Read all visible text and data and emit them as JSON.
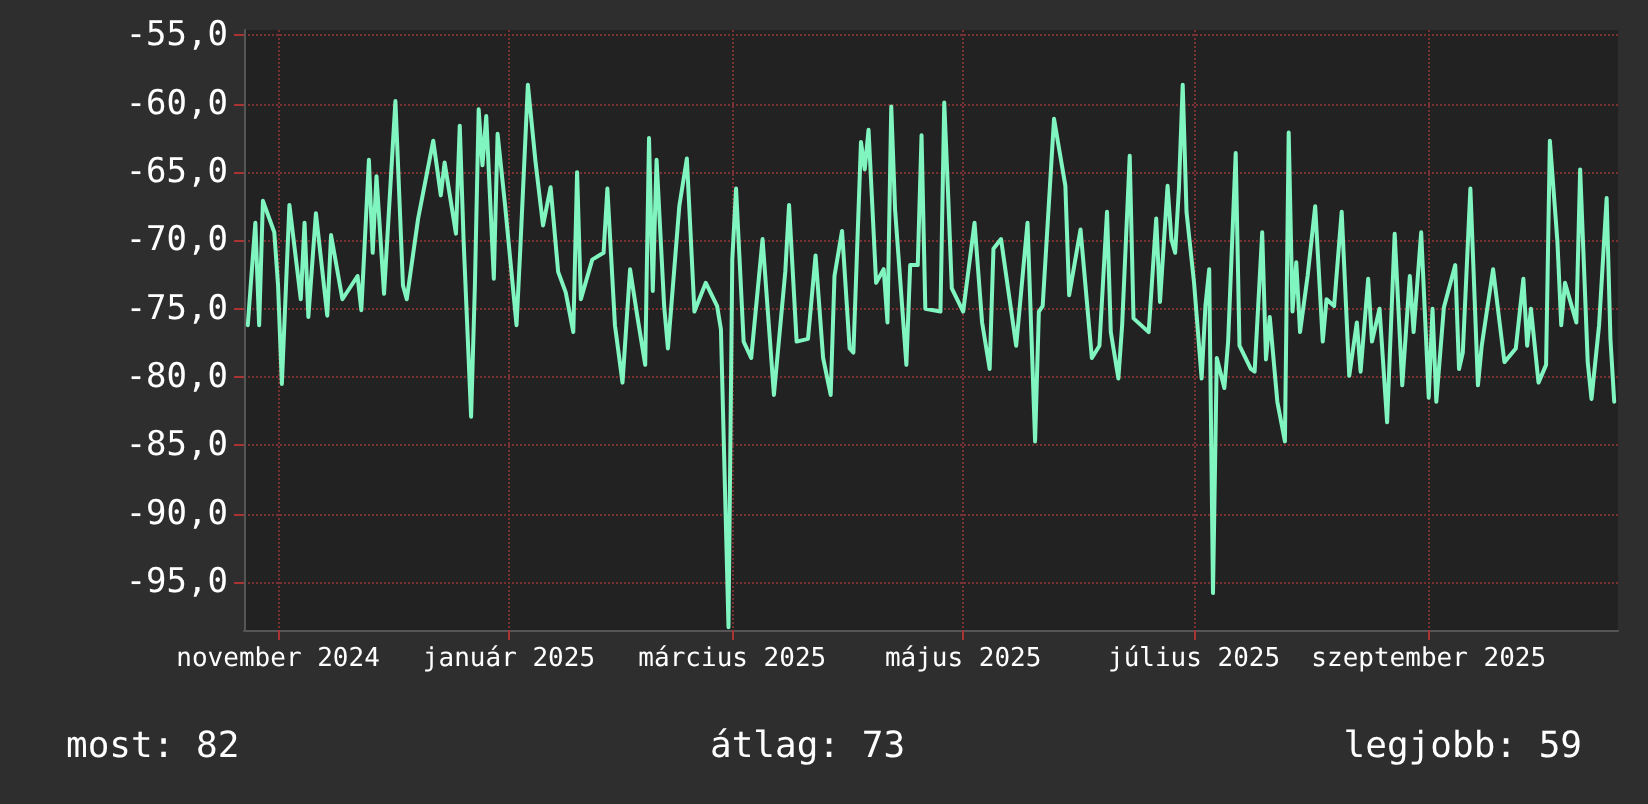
{
  "chart_data": {
    "type": "line",
    "xlim": [
      "2024-11-06",
      "2025-11-04"
    ],
    "xticks": [
      {
        "value": "2024-11-15",
        "label": "november 2024"
      },
      {
        "value": "2025-01-15",
        "label": "január 2025"
      },
      {
        "value": "2025-03-15",
        "label": "március 2025"
      },
      {
        "value": "2025-05-15",
        "label": "május 2025"
      },
      {
        "value": "2025-07-15",
        "label": "július 2025"
      },
      {
        "value": "2025-09-15",
        "label": "szeptember 2025"
      }
    ],
    "ylim": [
      -98.5,
      -54.6
    ],
    "yticks": [
      {
        "value": -55,
        "label": "-55,0"
      },
      {
        "value": -60,
        "label": "-60,0"
      },
      {
        "value": -65,
        "label": "-65,0"
      },
      {
        "value": -70,
        "label": "-70,0"
      },
      {
        "value": -75,
        "label": "-75,0"
      },
      {
        "value": -80,
        "label": "-80,0"
      },
      {
        "value": -85,
        "label": "-85,0"
      },
      {
        "value": -90,
        "label": "-90,0"
      },
      {
        "value": -95,
        "label": "-95,0"
      }
    ],
    "grid": true,
    "marker": "none",
    "line_style": "solid",
    "annotations": [
      "most: 82",
      "átlag: 73",
      "legjobb: 59"
    ],
    "series": [
      {
        "color": "#80f5c0",
        "x": [
          "2024-11-07",
          "2024-11-09",
          "2024-11-10",
          "2024-11-11",
          "2024-11-14",
          "2024-11-15",
          "2024-11-16",
          "2024-11-18",
          "2024-11-21",
          "2024-11-22",
          "2024-11-23",
          "2024-11-25",
          "2024-11-28",
          "2024-11-29",
          "2024-12-02",
          "2024-12-06",
          "2024-12-07",
          "2024-12-09",
          "2024-12-10",
          "2024-12-11",
          "2024-12-13",
          "2024-12-16",
          "2024-12-18",
          "2024-12-19",
          "2024-12-22",
          "2024-12-26",
          "2024-12-28",
          "2024-12-29",
          "2025-01-01",
          "2025-01-02",
          "2025-01-03",
          "2025-01-05",
          "2025-01-06",
          "2025-01-07",
          "2025-01-08",
          "2025-01-09",
          "2025-01-11",
          "2025-01-12",
          "2025-01-14",
          "2025-01-17",
          "2025-01-18",
          "2025-01-20",
          "2025-01-22",
          "2025-01-24",
          "2025-01-26",
          "2025-01-28",
          "2025-01-30",
          "2025-02-01",
          "2025-02-02",
          "2025-02-03",
          "2025-02-06",
          "2025-02-09",
          "2025-02-10",
          "2025-02-12",
          "2025-02-14",
          "2025-02-16",
          "2025-02-18",
          "2025-02-20",
          "2025-02-21",
          "2025-02-22",
          "2025-02-23",
          "2025-02-25",
          "2025-02-26",
          "2025-03-01",
          "2025-03-03",
          "2025-03-05",
          "2025-03-08",
          "2025-03-11",
          "2025-03-12",
          "2025-03-14",
          "2025-03-15",
          "2025-03-16",
          "2025-03-18",
          "2025-03-20",
          "2025-03-23",
          "2025-03-26",
          "2025-03-29",
          "2025-03-30",
          "2025-04-01",
          "2025-04-04",
          "2025-04-06",
          "2025-04-08",
          "2025-04-10",
          "2025-04-11",
          "2025-04-13",
          "2025-04-15",
          "2025-04-16",
          "2025-04-18",
          "2025-04-19",
          "2025-04-20",
          "2025-04-22",
          "2025-04-24",
          "2025-04-25",
          "2025-04-26",
          "2025-04-27",
          "2025-04-30",
          "2025-05-01",
          "2025-05-03",
          "2025-05-04",
          "2025-05-05",
          "2025-05-09",
          "2025-05-10",
          "2025-05-11",
          "2025-05-12",
          "2025-05-15",
          "2025-05-18",
          "2025-05-20",
          "2025-05-22",
          "2025-05-23",
          "2025-05-25",
          "2025-05-29",
          "2025-06-01",
          "2025-06-03",
          "2025-06-04",
          "2025-06-05",
          "2025-06-08",
          "2025-06-11",
          "2025-06-12",
          "2025-06-15",
          "2025-06-18",
          "2025-06-20",
          "2025-06-22",
          "2025-06-23",
          "2025-06-25",
          "2025-06-26",
          "2025-06-28",
          "2025-06-29",
          "2025-07-03",
          "2025-07-05",
          "2025-07-06",
          "2025-07-08",
          "2025-07-09",
          "2025-07-10",
          "2025-07-11",
          "2025-07-12",
          "2025-07-13",
          "2025-07-15",
          "2025-07-17",
          "2025-07-18",
          "2025-07-19",
          "2025-07-20",
          "2025-07-21",
          "2025-07-23",
          "2025-07-24",
          "2025-07-26",
          "2025-07-27",
          "2025-07-30",
          "2025-07-31",
          "2025-08-02",
          "2025-08-03",
          "2025-08-04",
          "2025-08-06",
          "2025-08-08",
          "2025-08-09",
          "2025-08-10",
          "2025-08-11",
          "2025-08-12",
          "2025-08-14",
          "2025-08-16",
          "2025-08-18",
          "2025-08-19",
          "2025-08-21",
          "2025-08-23",
          "2025-08-25",
          "2025-08-27",
          "2025-08-28",
          "2025-08-30",
          "2025-08-31",
          "2025-09-02",
          "2025-09-04",
          "2025-09-06",
          "2025-09-08",
          "2025-09-10",
          "2025-09-11",
          "2025-09-13",
          "2025-09-15",
          "2025-09-16",
          "2025-09-17",
          "2025-09-19",
          "2025-09-22",
          "2025-09-23",
          "2025-09-24",
          "2025-09-26",
          "2025-09-28",
          "2025-09-29",
          "2025-10-02",
          "2025-10-05",
          "2025-10-08",
          "2025-10-10",
          "2025-10-11",
          "2025-10-12",
          "2025-10-14",
          "2025-10-16",
          "2025-10-17",
          "2025-10-19",
          "2025-10-20",
          "2025-10-21",
          "2025-10-24",
          "2025-10-25",
          "2025-10-27",
          "2025-10-28",
          "2025-10-30",
          "2025-11-01",
          "2025-11-02",
          "2025-11-03"
        ],
        "values": [
          -76.2,
          -68.7,
          -76.2,
          -67.1,
          -69.4,
          -73.3,
          -80.5,
          -67.4,
          -74.3,
          -68.7,
          -75.6,
          -68.0,
          -75.5,
          -69.6,
          -74.3,
          -72.6,
          -75.1,
          -64.1,
          -70.9,
          -65.3,
          -73.9,
          -59.8,
          -73.3,
          -74.3,
          -68.4,
          -62.7,
          -66.7,
          -64.3,
          -69.5,
          -61.6,
          -69.9,
          -82.9,
          -73.3,
          -60.4,
          -64.5,
          -60.9,
          -72.8,
          -62.2,
          -67.5,
          -76.2,
          -70.6,
          -58.6,
          -64.2,
          -68.9,
          -66.1,
          -72.3,
          -73.8,
          -76.7,
          -65.0,
          -74.3,
          -71.4,
          -70.9,
          -66.2,
          -76.2,
          -80.4,
          -72.1,
          -75.7,
          -79.1,
          -62.5,
          -73.7,
          -64.1,
          -74.8,
          -77.9,
          -67.5,
          -64.0,
          -75.2,
          -73.1,
          -74.8,
          -76.5,
          -98.3,
          -71.4,
          -66.2,
          -77.4,
          -78.6,
          -69.9,
          -81.3,
          -72.3,
          -67.4,
          -77.4,
          -77.2,
          -71.1,
          -78.6,
          -81.3,
          -72.6,
          -69.3,
          -77.9,
          -78.2,
          -62.8,
          -64.8,
          -61.9,
          -73.1,
          -72.1,
          -76.0,
          -60.2,
          -67.7,
          -79.1,
          -71.8,
          -71.8,
          -62.3,
          -75.0,
          -75.2,
          -59.9,
          -66.5,
          -73.5,
          -75.2,
          -68.7,
          -76.0,
          -79.4,
          -70.6,
          -69.9,
          -77.7,
          -68.7,
          -84.7,
          -75.2,
          -74.8,
          -61.1,
          -66.0,
          -74.0,
          -69.2,
          -78.6,
          -77.7,
          -67.9,
          -76.7,
          -80.1,
          -76.2,
          -63.8,
          -75.7,
          -76.7,
          -68.4,
          -74.5,
          -66.0,
          -69.9,
          -70.9,
          -66.2,
          -58.6,
          -67.9,
          -73.1,
          -80.1,
          -74.8,
          -72.1,
          -95.8,
          -78.6,
          -80.8,
          -77.4,
          -63.6,
          -77.7,
          -79.4,
          -79.6,
          -69.4,
          -78.7,
          -75.6,
          -81.8,
          -84.7,
          -62.1,
          -75.2,
          -71.6,
          -76.7,
          -72.6,
          -67.5,
          -77.4,
          -74.3,
          -74.8,
          -67.9,
          -79.9,
          -76.0,
          -79.6,
          -72.8,
          -77.4,
          -75.0,
          -83.3,
          -69.5,
          -80.6,
          -72.6,
          -76.7,
          -69.4,
          -81.5,
          -75.0,
          -81.8,
          -74.9,
          -71.8,
          -79.4,
          -78.2,
          -66.2,
          -80.6,
          -77.7,
          -72.1,
          -78.9,
          -77.9,
          -72.8,
          -77.7,
          -75.0,
          -80.4,
          -79.1,
          -62.7,
          -70.1,
          -76.2,
          -73.1,
          -76.0,
          -64.8,
          -78.9,
          -81.6,
          -76.2,
          -66.9,
          -77.2,
          -81.8
        ]
      }
    ]
  }
}
